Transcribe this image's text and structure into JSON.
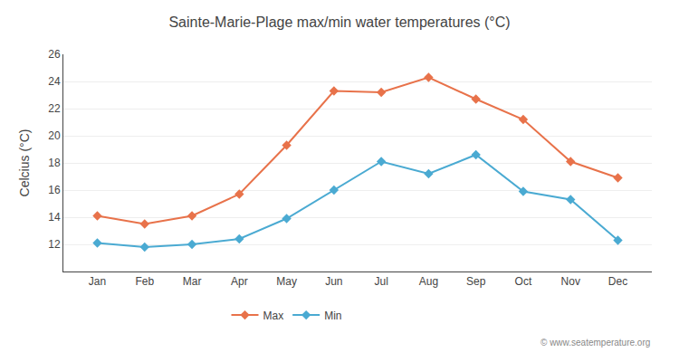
{
  "chart_data": {
    "type": "line",
    "title": "Sainte-Marie-Plage max/min water temperatures (°C)",
    "y_label": "Celcius (°C)",
    "categories": [
      "Jan",
      "Feb",
      "Mar",
      "Apr",
      "May",
      "Jun",
      "Jul",
      "Aug",
      "Sep",
      "Oct",
      "Nov",
      "Dec"
    ],
    "series": [
      {
        "name": "Max",
        "color": "#e8724a",
        "marker": "diamond",
        "values": [
          14.1,
          13.5,
          14.1,
          15.7,
          19.3,
          23.3,
          23.2,
          24.3,
          22.7,
          21.2,
          18.1,
          16.9
        ]
      },
      {
        "name": "Min",
        "color": "#4aaad2",
        "marker": "diamond",
        "values": [
          12.1,
          11.8,
          12.0,
          12.4,
          13.9,
          16.0,
          18.1,
          17.2,
          18.6,
          15.9,
          15.3,
          12.3
        ]
      }
    ],
    "ylim": [
      10,
      26
    ],
    "yticks": [
      12,
      14,
      16,
      18,
      20,
      22,
      24,
      26
    ],
    "grid": true,
    "legend": "bottom",
    "annotations": [
      "© www.seatemperature.org"
    ]
  }
}
